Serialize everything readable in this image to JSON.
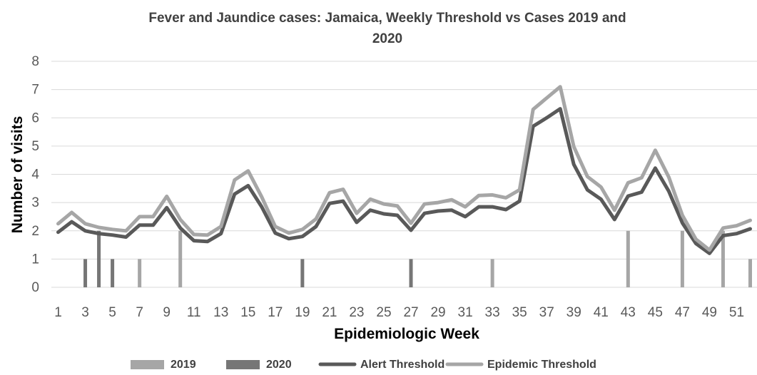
{
  "chart_data": {
    "type": "bar",
    "title_line1": "Fever and Jaundice cases: Jamaica, Weekly Threshold vs Cases 2019 and",
    "title_line2": "2020",
    "xlabel": "Epidemiologic Week",
    "ylabel": "Number of visits",
    "ylim": [
      0,
      8
    ],
    "y_ticks": [
      "0",
      "1",
      "2",
      "3",
      "4",
      "5",
      "6",
      "7",
      "8"
    ],
    "x_ticks": [
      "1",
      "3",
      "5",
      "7",
      "9",
      "11",
      "13",
      "15",
      "17",
      "19",
      "21",
      "23",
      "25",
      "27",
      "29",
      "31",
      "33",
      "35",
      "37",
      "39",
      "41",
      "43",
      "45",
      "47",
      "49",
      "51"
    ],
    "weeks": [
      1,
      2,
      3,
      4,
      5,
      6,
      7,
      8,
      9,
      10,
      11,
      12,
      13,
      14,
      15,
      16,
      17,
      18,
      19,
      20,
      21,
      22,
      23,
      24,
      25,
      26,
      27,
      28,
      29,
      30,
      31,
      32,
      33,
      34,
      35,
      36,
      37,
      38,
      39,
      40,
      41,
      42,
      43,
      44,
      45,
      46,
      47,
      48,
      49,
      50,
      51,
      52
    ],
    "grid": true,
    "legend_position": "bottom",
    "series": [
      {
        "name": "2019",
        "kind": "bar",
        "color": "#a6a6a6",
        "values": [
          0,
          0,
          0,
          0,
          0,
          0,
          1,
          0,
          0,
          2,
          0,
          0,
          0,
          0,
          0,
          0,
          0,
          0,
          0,
          0,
          0,
          0,
          0,
          0,
          0,
          0,
          0,
          0,
          0,
          0,
          0,
          0,
          1,
          0,
          0,
          0,
          0,
          0,
          0,
          0,
          0,
          0,
          2,
          0,
          0,
          0,
          2,
          0,
          0,
          2,
          0,
          1
        ]
      },
      {
        "name": "2020",
        "kind": "bar",
        "color": "#767676",
        "values": [
          0,
          0,
          1,
          2,
          1,
          0,
          0,
          0,
          0,
          0,
          0,
          0,
          0,
          0,
          0,
          0,
          0,
          0,
          1,
          0,
          0,
          0,
          0,
          0,
          0,
          0,
          1,
          0,
          0,
          0,
          0,
          0,
          0,
          0,
          0,
          0,
          0,
          0,
          0,
          0,
          0,
          0,
          0,
          0,
          0,
          0,
          0,
          0,
          0,
          0,
          0,
          0
        ]
      },
      {
        "name": "Alert Threshold",
        "kind": "line",
        "color": "#595959",
        "values": [
          1.95,
          2.32,
          2.0,
          1.9,
          1.85,
          1.78,
          2.2,
          2.2,
          2.82,
          2.1,
          1.65,
          1.62,
          1.9,
          3.3,
          3.6,
          2.85,
          1.92,
          1.72,
          1.8,
          2.15,
          2.97,
          3.05,
          2.3,
          2.73,
          2.6,
          2.55,
          2.02,
          2.62,
          2.7,
          2.73,
          2.5,
          2.85,
          2.85,
          2.75,
          3.05,
          5.7,
          6.0,
          6.32,
          4.35,
          3.45,
          3.12,
          2.4,
          3.23,
          3.37,
          4.22,
          3.4,
          2.28,
          1.55,
          1.2,
          1.83,
          1.9,
          2.07
        ]
      },
      {
        "name": "Epidemic Threshold",
        "kind": "line",
        "color": "#a6a6a6",
        "values": [
          2.25,
          2.65,
          2.25,
          2.12,
          2.05,
          2.0,
          2.5,
          2.5,
          3.22,
          2.4,
          1.87,
          1.85,
          2.15,
          3.8,
          4.12,
          3.2,
          2.15,
          1.92,
          2.05,
          2.42,
          3.35,
          3.47,
          2.62,
          3.12,
          2.95,
          2.88,
          2.27,
          2.95,
          3.0,
          3.1,
          2.85,
          3.25,
          3.27,
          3.17,
          3.45,
          6.3,
          6.7,
          7.1,
          4.98,
          3.92,
          3.55,
          2.73,
          3.7,
          3.88,
          4.85,
          3.9,
          2.55,
          1.7,
          1.32,
          2.1,
          2.18,
          2.37
        ]
      }
    ]
  }
}
